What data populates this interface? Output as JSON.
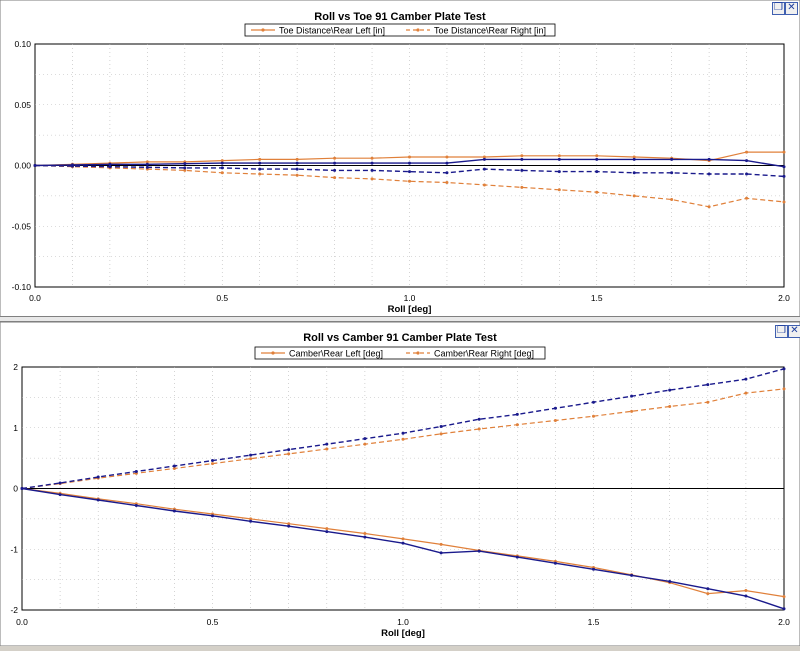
{
  "colors": {
    "left_series": "#e0803a",
    "right_series": "#e0803a",
    "blue_series": "#1a1a8c",
    "plot_bg": "#ffffff",
    "panel_bg": "#ffffff"
  },
  "icons": {
    "maximize": "restore-icon",
    "close": "close-icon"
  },
  "chart_data": [
    {
      "type": "line",
      "title": "Roll vs Toe 91 Camber Plate Test",
      "xlabel": "Roll [deg]",
      "ylabel": "",
      "xlim": [
        0,
        2
      ],
      "ylim": [
        -0.1,
        0.1
      ],
      "x_ticks": [
        "0.0",
        "0.5",
        "1.0",
        "1.5",
        "2.0"
      ],
      "y_ticks": [
        "0.10",
        "0.05",
        "0.00",
        "-0.05",
        "-0.10"
      ],
      "y_tick_values": [
        0.1,
        0.05,
        0,
        -0.05,
        -0.1
      ],
      "legend_position": "top-center",
      "series": [
        {
          "name": "Toe Distance\\Rear Left [in]",
          "style": "solid",
          "color": "#e0803a",
          "x": [
            0,
            0.1,
            0.2,
            0.3,
            0.4,
            0.5,
            0.6,
            0.7,
            0.8,
            0.9,
            1.0,
            1.1,
            1.2,
            1.3,
            1.4,
            1.5,
            1.6,
            1.7,
            1.8,
            1.9,
            2.0
          ],
          "y": [
            0,
            0.001,
            0.002,
            0.003,
            0.003,
            0.004,
            0.005,
            0.005,
            0.006,
            0.006,
            0.007,
            0.007,
            0.007,
            0.008,
            0.008,
            0.008,
            0.007,
            0.006,
            0.004,
            0.011,
            0.011
          ]
        },
        {
          "name": "Toe Distance\\Rear Right [in]",
          "style": "dashed",
          "color": "#e0803a",
          "x": [
            0,
            0.1,
            0.2,
            0.3,
            0.4,
            0.5,
            0.6,
            0.7,
            0.8,
            0.9,
            1.0,
            1.1,
            1.2,
            1.3,
            1.4,
            1.5,
            1.6,
            1.7,
            1.8,
            1.9,
            2.0
          ],
          "y": [
            0,
            -0.001,
            -0.002,
            -0.003,
            -0.004,
            -0.006,
            -0.007,
            -0.008,
            -0.01,
            -0.011,
            -0.013,
            -0.014,
            -0.016,
            -0.018,
            -0.02,
            -0.022,
            -0.025,
            -0.028,
            -0.034,
            -0.027,
            -0.03
          ]
        },
        {
          "style": "solid",
          "color": "#1a1a8c",
          "x": [
            0,
            0.1,
            0.2,
            0.3,
            0.4,
            0.5,
            0.6,
            0.7,
            0.8,
            0.9,
            1.0,
            1.1,
            1.2,
            1.3,
            1.4,
            1.5,
            1.6,
            1.7,
            1.8,
            1.9,
            2.0
          ],
          "y": [
            0,
            0.0005,
            0.001,
            0.001,
            0.0015,
            0.002,
            0.002,
            0.002,
            0.002,
            0.002,
            0.002,
            0.002,
            0.005,
            0.005,
            0.005,
            0.005,
            0.005,
            0.005,
            0.005,
            0.004,
            -0.001
          ]
        },
        {
          "style": "dashed",
          "color": "#1a1a8c",
          "x": [
            0,
            0.1,
            0.2,
            0.3,
            0.4,
            0.5,
            0.6,
            0.7,
            0.8,
            0.9,
            1.0,
            1.1,
            1.2,
            1.3,
            1.4,
            1.5,
            1.6,
            1.7,
            1.8,
            1.9,
            2.0
          ],
          "y": [
            0,
            -0.0005,
            -0.001,
            -0.0015,
            -0.002,
            -0.002,
            -0.003,
            -0.003,
            -0.004,
            -0.004,
            -0.005,
            -0.006,
            -0.003,
            -0.004,
            -0.005,
            -0.005,
            -0.006,
            -0.006,
            -0.007,
            -0.007,
            -0.009
          ]
        }
      ]
    },
    {
      "type": "line",
      "title": "Roll vs Camber 91 Camber Plate Test",
      "xlabel": "Roll [deg]",
      "ylabel": "",
      "xlim": [
        0,
        2
      ],
      "ylim": [
        -2,
        2
      ],
      "x_ticks": [
        "0.0",
        "0.5",
        "1.0",
        "1.5",
        "2.0"
      ],
      "y_ticks": [
        "2",
        "1",
        "0",
        "-1",
        "-2"
      ],
      "y_tick_values": [
        2,
        1,
        0,
        -1,
        -2
      ],
      "legend_position": "top-center",
      "series": [
        {
          "name": "Camber\\Rear Left [deg]",
          "style": "solid",
          "color": "#e0803a",
          "x": [
            0,
            0.1,
            0.2,
            0.3,
            0.4,
            0.5,
            0.6,
            0.7,
            0.8,
            0.9,
            1.0,
            1.1,
            1.2,
            1.3,
            1.4,
            1.5,
            1.6,
            1.7,
            1.8,
            1.9,
            2.0
          ],
          "y": [
            0,
            -0.08,
            -0.17,
            -0.25,
            -0.34,
            -0.42,
            -0.5,
            -0.58,
            -0.66,
            -0.74,
            -0.83,
            -0.92,
            -1.02,
            -1.11,
            -1.2,
            -1.3,
            -1.42,
            -1.55,
            -1.73,
            -1.68,
            -1.78
          ]
        },
        {
          "name": "Camber\\Rear Right [deg]",
          "style": "dashed",
          "color": "#e0803a",
          "x": [
            0,
            0.1,
            0.2,
            0.3,
            0.4,
            0.5,
            0.6,
            0.7,
            0.8,
            0.9,
            1.0,
            1.1,
            1.2,
            1.3,
            1.4,
            1.5,
            1.6,
            1.7,
            1.8,
            1.9,
            2.0
          ],
          "y": [
            0,
            0.08,
            0.17,
            0.25,
            0.33,
            0.41,
            0.49,
            0.57,
            0.65,
            0.73,
            0.81,
            0.9,
            0.98,
            1.05,
            1.12,
            1.19,
            1.27,
            1.35,
            1.42,
            1.57,
            1.64
          ]
        },
        {
          "style": "solid",
          "color": "#1a1a8c",
          "x": [
            0,
            0.1,
            0.2,
            0.3,
            0.4,
            0.5,
            0.6,
            0.7,
            0.8,
            0.9,
            1.0,
            1.1,
            1.2,
            1.3,
            1.4,
            1.5,
            1.6,
            1.7,
            1.8,
            1.9,
            2.0
          ],
          "y": [
            0,
            -0.1,
            -0.19,
            -0.28,
            -0.37,
            -0.45,
            -0.54,
            -0.62,
            -0.71,
            -0.8,
            -0.9,
            -1.06,
            -1.03,
            -1.13,
            -1.23,
            -1.33,
            -1.43,
            -1.53,
            -1.65,
            -1.77,
            -1.98
          ]
        },
        {
          "style": "dashed",
          "color": "#1a1a8c",
          "x": [
            0,
            0.1,
            0.2,
            0.3,
            0.4,
            0.5,
            0.6,
            0.7,
            0.8,
            0.9,
            1.0,
            1.1,
            1.2,
            1.3,
            1.4,
            1.5,
            1.6,
            1.7,
            1.8,
            1.9,
            2.0
          ],
          "y": [
            0,
            0.09,
            0.19,
            0.28,
            0.37,
            0.46,
            0.55,
            0.64,
            0.73,
            0.82,
            0.91,
            1.02,
            1.14,
            1.22,
            1.32,
            1.42,
            1.52,
            1.62,
            1.71,
            1.8,
            1.97
          ]
        }
      ]
    }
  ]
}
